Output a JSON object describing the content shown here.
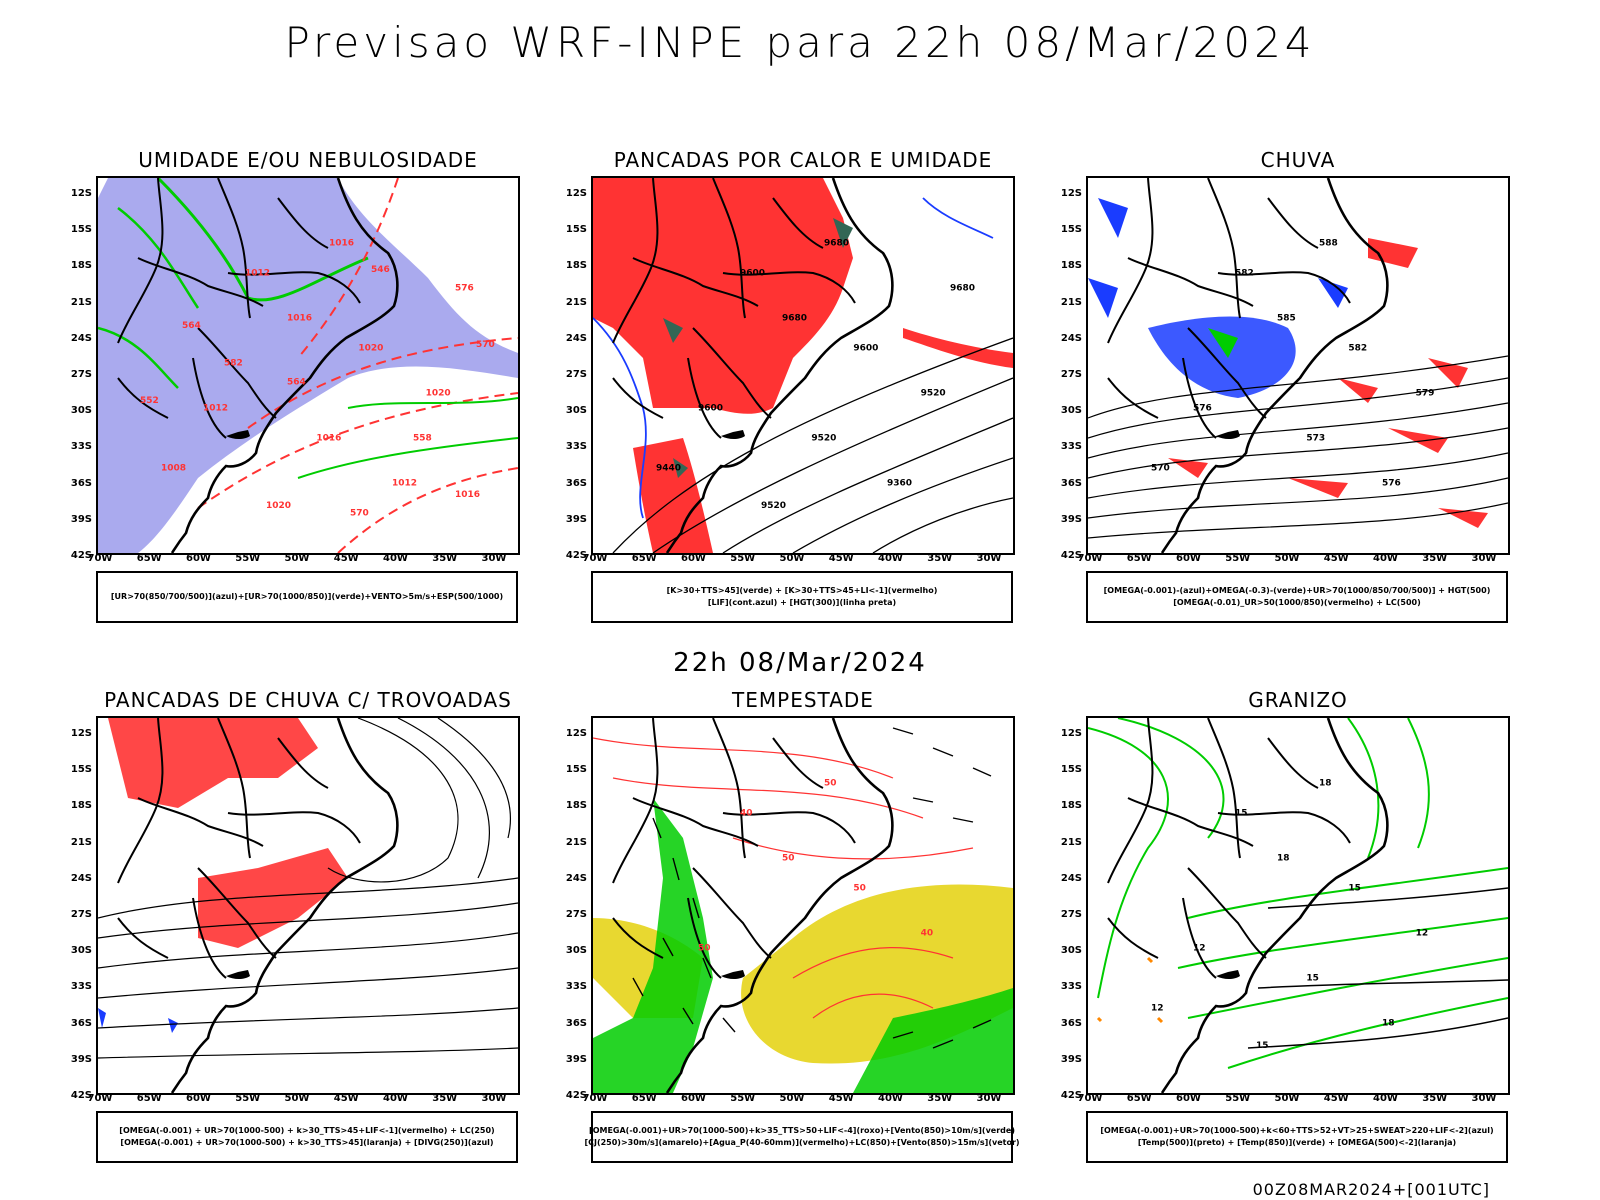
{
  "header": {
    "title": "Previsao WRF-INPE  para 22h 08/Mar/2024"
  },
  "mid_title": "22h 08/Mar/2024",
  "footer": "00Z08MAR2024+[001UTC]",
  "axes": {
    "lat": [
      "12S",
      "15S",
      "18S",
      "21S",
      "24S",
      "27S",
      "30S",
      "33S",
      "36S",
      "39S",
      "42S"
    ],
    "lon": [
      "70W",
      "65W",
      "60W",
      "55W",
      "50W",
      "45W",
      "40W",
      "35W",
      "30W"
    ]
  },
  "colors": {
    "blue_shade": "#aaaaee",
    "green": "#00cc00",
    "red": "#ff3333",
    "dark_green": "#336655",
    "yellow": "#e8d830",
    "blue": "#1a3cff",
    "orange": "#ff8800"
  },
  "panels": [
    {
      "title": "UMIDADE E/OU NEBULOSIDADE",
      "legend": [
        "[UR>70(850/700/500)](azul)+[UR>70(1000/850)](verde)+VENTO>5m/s+ESP(500/1000)"
      ],
      "contour_labels": [
        "1016",
        "1012",
        "1016",
        "1020",
        "1020",
        "1012",
        "1016",
        "1008",
        "1012",
        "1020",
        "576",
        "582",
        "570",
        "564",
        "558",
        "570",
        "552",
        "546",
        "564",
        "1016"
      ]
    },
    {
      "title": "PANCADAS POR CALOR E UMIDADE",
      "legend": [
        "[K>30+TTS>45](verde) + [K>30+TTS>45+LI<-1](vermelho)",
        "[LIF](cont.azul) + [HGT(300)](linha preta)"
      ],
      "contour_labels": [
        "9680",
        "9600",
        "9680",
        "9600",
        "9520",
        "9600",
        "9520",
        "9440",
        "9360",
        "9520",
        "9680"
      ]
    },
    {
      "title": "CHUVA",
      "legend": [
        "[OMEGA(-0.001)-(azul)+OMEGA(-0.3)-(verde)+UR>70(1000/850/700/500)] + HGT(500)",
        "[OMEGA(-0.01)_UR>50(1000/850)(vermelho) + LC(500)"
      ],
      "contour_labels": [
        "588",
        "582",
        "585",
        "582",
        "579",
        "576",
        "573",
        "570",
        "576"
      ]
    },
    {
      "title": "PANCADAS DE CHUVA C/ TROVOADAS",
      "legend": [
        "[OMEGA(-0.001) + UR>70(1000-500) + k>30_TTS>45+LIF<-1](vermelho) + LC(250)",
        "[OMEGA(-0.001) + UR>70(1000-500) + k>30_TTS>45](laranja) + [DIVG(250)](azul)"
      ],
      "contour_labels": []
    },
    {
      "title": "TEMPESTADE",
      "legend": [
        "[OMEGA(-0.001)+UR>70(1000-500)+k>35_TTS>50+LIF<-4](roxo)+[Vento(850)>10m/s](verde)",
        "[CJ(250)>30m/s](amarelo)+[Agua_P(40-60mm)](vermelho)+LC(850)+[Vento(850)>15m/s](vetor)"
      ],
      "contour_labels": [
        "50",
        "40",
        "50",
        "50",
        "40",
        "50"
      ]
    },
    {
      "title": "GRANIZO",
      "legend": [
        "[OMEGA(-0.001)+UR>70(1000-500)+k<60+TTS>52+VT>25+SWEAT>220+LIF<-2](azul)",
        "[Temp(500)](preto) + [Temp(850)](verde) + [OMEGA(500)<-2](laranja)"
      ],
      "contour_labels": [
        "18",
        "15",
        "18",
        "15",
        "12",
        "12",
        "15",
        "12",
        "18",
        "15"
      ]
    }
  ]
}
